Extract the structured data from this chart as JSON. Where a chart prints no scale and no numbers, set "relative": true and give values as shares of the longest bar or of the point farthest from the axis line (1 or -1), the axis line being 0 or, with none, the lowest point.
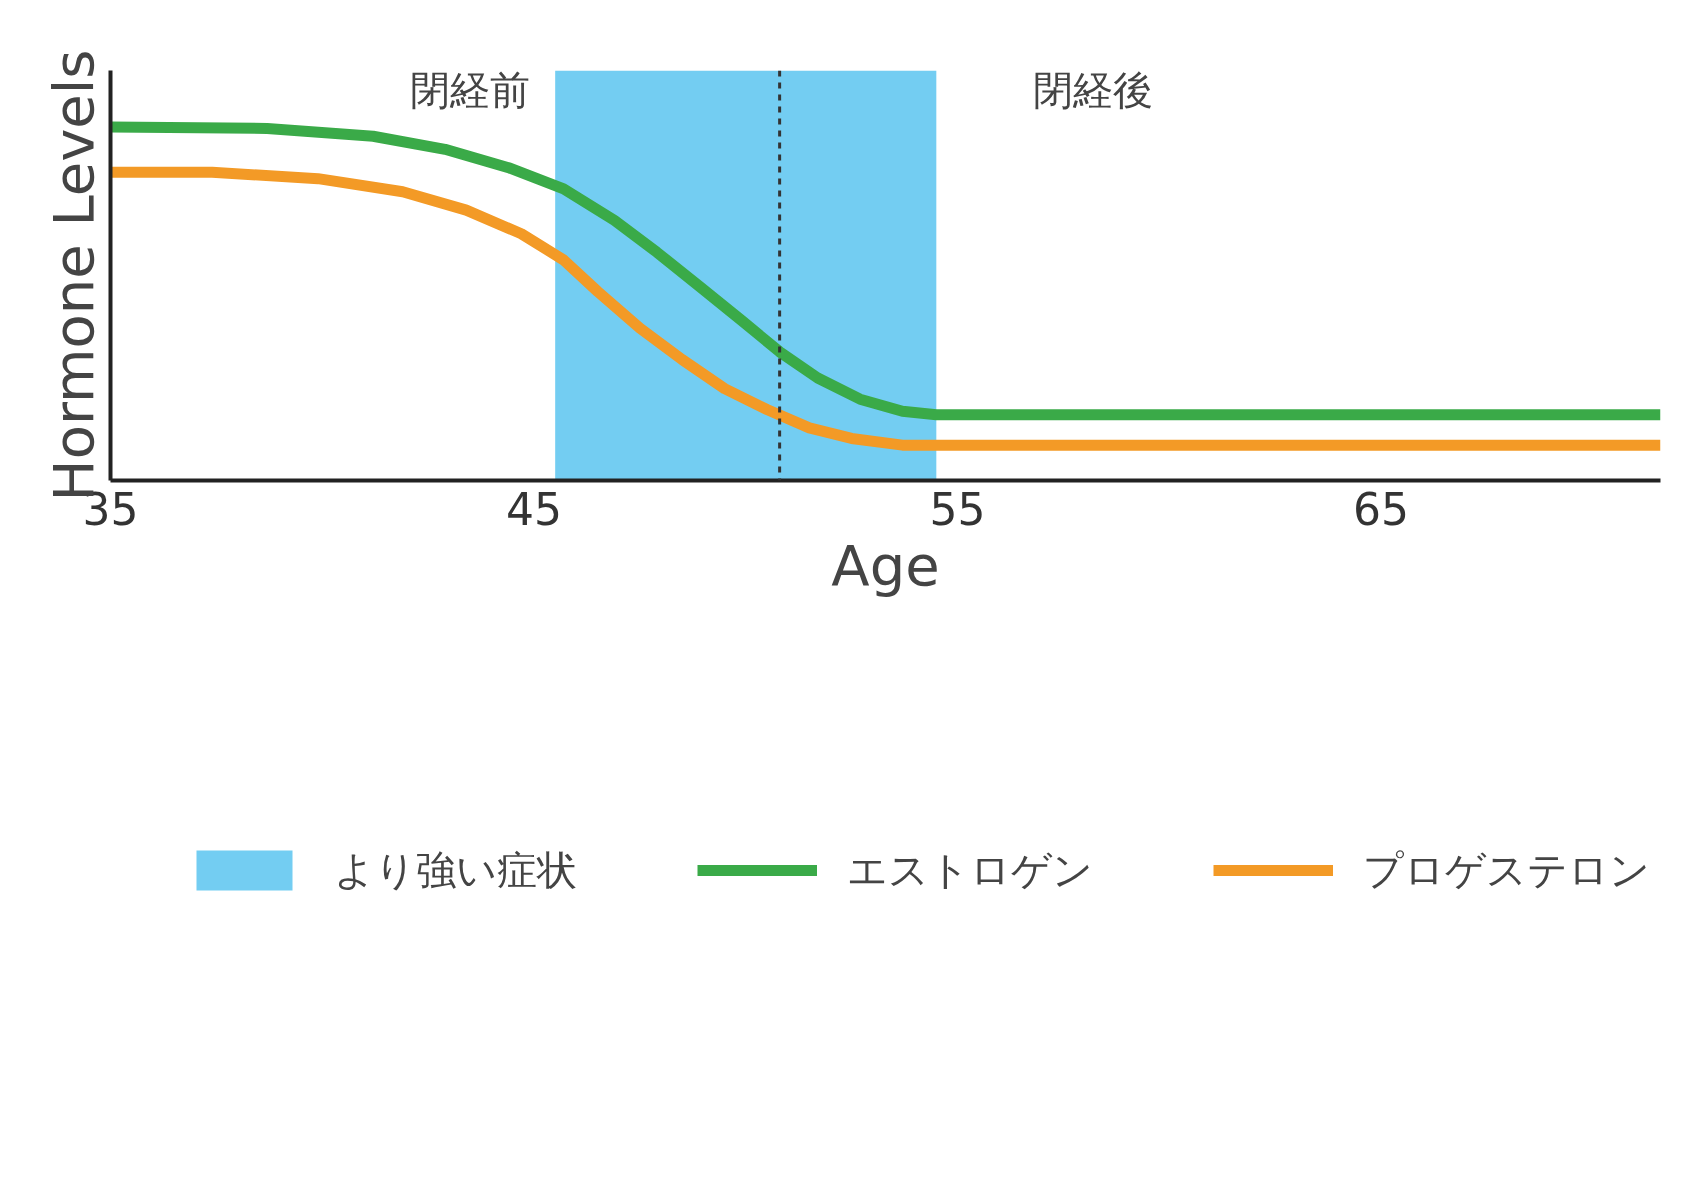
{
  "chart_data": {
    "type": "line",
    "relative": true,
    "xlabel": "Age",
    "ylabel": "Hormone Levels",
    "xlim": [
      35,
      71.6
    ],
    "xticks": [
      35,
      45,
      55,
      65
    ],
    "grid": false,
    "legend": "bottom",
    "marker": "none",
    "line_style": "solid",
    "series": [
      {
        "name": "エストロゲン",
        "color": "#3aaa48",
        "x": [
          35,
          38.7,
          41.2,
          42.9,
          44.4,
          45.7,
          46.9,
          47.9,
          48.9,
          49.9,
          50.8,
          51.7,
          52.7,
          53.7,
          54.5,
          71.6
        ],
        "values": [
          1.0,
          0.996,
          0.974,
          0.937,
          0.885,
          0.825,
          0.736,
          0.646,
          0.55,
          0.453,
          0.364,
          0.29,
          0.23,
          0.196,
          0.186,
          0.186
        ]
      },
      {
        "name": "プロゲステロン",
        "color": "#f39a26",
        "x": [
          35,
          37.4,
          39.9,
          41.9,
          43.4,
          44.7,
          45.7,
          46.5,
          47.5,
          48.5,
          49.5,
          50.5,
          51.5,
          52.5,
          53.7,
          71.6
        ],
        "values": [
          0.872,
          0.872,
          0.854,
          0.817,
          0.765,
          0.698,
          0.624,
          0.535,
          0.431,
          0.342,
          0.26,
          0.201,
          0.149,
          0.119,
          0.1,
          0.1
        ]
      }
    ],
    "ref_lines": [
      {
        "axis": "x",
        "value": 50.8,
        "color": "#333333",
        "line_style": "dashed"
      }
    ],
    "bands": [
      {
        "axis": "x",
        "from": 45.5,
        "to": 54.5,
        "label": "より強い症状",
        "color": "#5bc4f0"
      }
    ],
    "annotations": [
      "閉経前",
      "閉経後"
    ]
  }
}
